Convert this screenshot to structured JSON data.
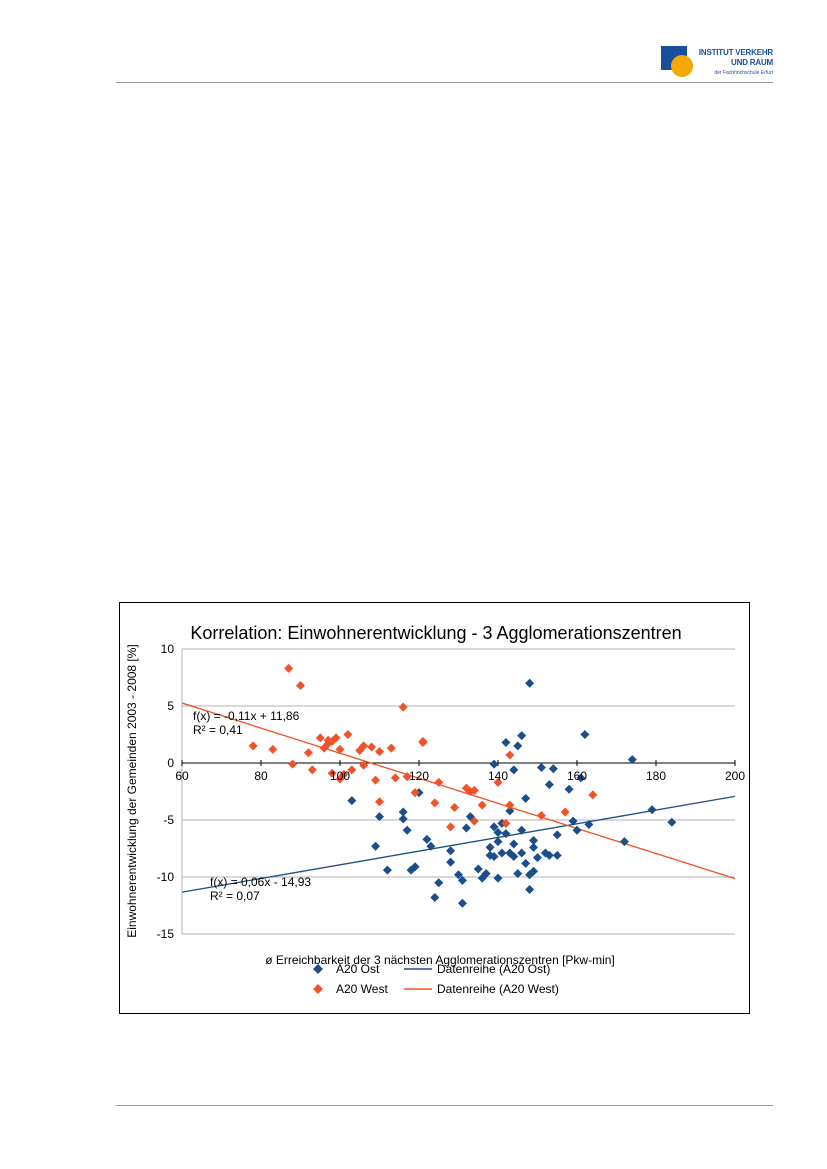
{
  "header": {
    "logo": {
      "line1": "INSTITUT VERKEHR",
      "line2": "UND RAUM",
      "line3": "der Fachhochschule Erfurt"
    }
  },
  "chart_data": {
    "type": "scatter",
    "title": "Korrelation: Einwohnerentwicklung - 3 Agglomerationszentren",
    "xlabel": "ø Erreichbarkeit der 3 nächsten Agglomerationszentren [Pkw-min]",
    "ylabel": "Einwohnerentwicklung der Gemeinden 2003 - 2008 [%]",
    "xlim": [
      60,
      200
    ],
    "ylim": [
      -15,
      10
    ],
    "x_ticks": [
      "60",
      "80",
      "100",
      "120",
      "140",
      "160",
      "180",
      "200"
    ],
    "y_ticks": [
      "10",
      "5",
      "0",
      "-5",
      "-10",
      "-15"
    ],
    "grid": true,
    "legend_position": "bottom",
    "series": [
      {
        "name": "A20 Ost",
        "color": "#1b4f8a",
        "points": [
          [
            103,
            -3.3
          ],
          [
            109,
            -7.3
          ],
          [
            110,
            -4.7
          ],
          [
            112,
            -9.4
          ],
          [
            116,
            -4.3
          ],
          [
            116,
            -4.9
          ],
          [
            117,
            -5.9
          ],
          [
            118,
            -9.4
          ],
          [
            119,
            -9.1
          ],
          [
            120,
            -2.6
          ],
          [
            122,
            -6.7
          ],
          [
            123,
            -7.3
          ],
          [
            124,
            -11.8
          ],
          [
            125,
            -10.5
          ],
          [
            128,
            -7.7
          ],
          [
            128,
            -8.7
          ],
          [
            130,
            -9.8
          ],
          [
            131,
            -12.3
          ],
          [
            131,
            -10.3
          ],
          [
            132,
            -5.7
          ],
          [
            133,
            -4.7
          ],
          [
            135,
            -9.3
          ],
          [
            136,
            -10.1
          ],
          [
            137,
            -9.7
          ],
          [
            138,
            -8.1
          ],
          [
            138,
            -7.4
          ],
          [
            139,
            -0.1
          ],
          [
            139,
            -5.6
          ],
          [
            139,
            -8.2
          ],
          [
            140,
            -6.1
          ],
          [
            140,
            -10.1
          ],
          [
            140,
            -6.9
          ],
          [
            141,
            -5.3
          ],
          [
            141,
            -7.9
          ],
          [
            142,
            -6.2
          ],
          [
            142,
            1.8
          ],
          [
            143,
            -7.9
          ],
          [
            143,
            -4.2
          ],
          [
            144,
            -0.6
          ],
          [
            144,
            -8.2
          ],
          [
            144,
            -7.1
          ],
          [
            145,
            1.5
          ],
          [
            145,
            -9.7
          ],
          [
            146,
            2.4
          ],
          [
            146,
            -5.9
          ],
          [
            146,
            -7.9
          ],
          [
            147,
            -3.1
          ],
          [
            147,
            -8.8
          ],
          [
            148,
            -9.8
          ],
          [
            148,
            -11.1
          ],
          [
            148,
            7.0
          ],
          [
            149,
            -7.4
          ],
          [
            149,
            -6.8
          ],
          [
            149,
            -9.5
          ],
          [
            150,
            -8.3
          ],
          [
            151,
            -0.4
          ],
          [
            152,
            -7.9
          ],
          [
            153,
            -1.9
          ],
          [
            153,
            -8.1
          ],
          [
            154,
            -0.5
          ],
          [
            155,
            -8.1
          ],
          [
            155,
            -6.3
          ],
          [
            158,
            -2.3
          ],
          [
            159,
            -5.1
          ],
          [
            160,
            -5.9
          ],
          [
            161,
            -1.3
          ],
          [
            162,
            2.5
          ],
          [
            163,
            -5.4
          ],
          [
            172,
            -6.9
          ],
          [
            174,
            0.3
          ],
          [
            179,
            -4.1
          ],
          [
            184,
            -5.2
          ]
        ]
      },
      {
        "name": "A20 West",
        "color": "#f0522a",
        "points": [
          [
            78,
            1.5
          ],
          [
            83,
            1.2
          ],
          [
            87,
            8.3
          ],
          [
            88,
            -0.1
          ],
          [
            90,
            6.8
          ],
          [
            92,
            0.9
          ],
          [
            93,
            -0.6
          ],
          [
            95,
            2.2
          ],
          [
            96,
            1.3
          ],
          [
            97,
            1.7
          ],
          [
            97,
            2.0
          ],
          [
            98,
            -0.9
          ],
          [
            98,
            1.9
          ],
          [
            99,
            2.2
          ],
          [
            100,
            1.2
          ],
          [
            100,
            -1.4
          ],
          [
            101,
            -1.0
          ],
          [
            102,
            2.5
          ],
          [
            103,
            -0.6
          ],
          [
            105,
            1.1
          ],
          [
            106,
            1.5
          ],
          [
            106,
            -0.2
          ],
          [
            108,
            1.4
          ],
          [
            109,
            -1.5
          ],
          [
            110,
            1.0
          ],
          [
            110,
            -3.4
          ],
          [
            113,
            1.3
          ],
          [
            114,
            -1.3
          ],
          [
            116,
            4.9
          ],
          [
            117,
            -1.2
          ],
          [
            119,
            -2.6
          ],
          [
            121,
            1.9
          ],
          [
            121,
            1.8
          ],
          [
            124,
            -3.5
          ],
          [
            125,
            -1.7
          ],
          [
            128,
            -5.6
          ],
          [
            129,
            -3.9
          ],
          [
            132,
            -2.2
          ],
          [
            133,
            -2.5
          ],
          [
            134,
            -2.4
          ],
          [
            134,
            -5.1
          ],
          [
            136,
            -3.7
          ],
          [
            140,
            -1.7
          ],
          [
            142,
            -5.3
          ],
          [
            143,
            0.7
          ],
          [
            143,
            -3.7
          ],
          [
            151,
            -4.6
          ],
          [
            157,
            -4.3
          ],
          [
            164,
            -2.8
          ]
        ]
      }
    ],
    "trendlines": [
      {
        "name": "Datenreihe (A20 Ost)",
        "color": "#1b4f8a",
        "slope": 0.06,
        "intercept": -14.93,
        "label_equation": "f(x) = 0,06x - 14,93",
        "label_r2": "R² = 0,07"
      },
      {
        "name": "Datenreihe (A20 West)",
        "color": "#f0522a",
        "slope": -0.11,
        "intercept": 11.86,
        "label_equation": "f(x) = -0,11x + 11,86",
        "label_r2": "R² = 0,41"
      }
    ]
  }
}
